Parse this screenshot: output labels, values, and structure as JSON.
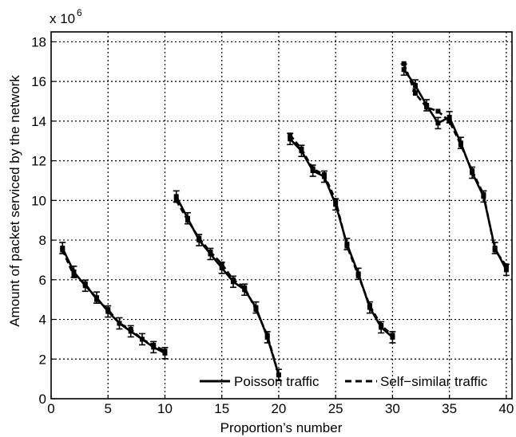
{
  "chart_data": {
    "type": "line",
    "title": "",
    "xlabel": "Proportion’s number",
    "ylabel": "Amount of packet serviced by the network",
    "y_multiplier_label": {
      "base": "x 10",
      "exponent": "6"
    },
    "xlim": [
      0,
      40.5
    ],
    "ylim": [
      0,
      18.5
    ],
    "xticks": [
      0,
      5,
      10,
      15,
      20,
      25,
      30,
      35,
      40
    ],
    "yticks": [
      0,
      2,
      4,
      6,
      8,
      10,
      12,
      14,
      16,
      18
    ],
    "grid": true,
    "grid_style": "dotted",
    "legend_position": "bottom-right",
    "series_color": "#000000",
    "series": [
      {
        "name": "Poisson traffic",
        "line_style": "solid",
        "segments": [
          {
            "x": [
              1,
              2,
              3,
              4,
              5,
              6,
              7,
              8,
              9,
              10
            ],
            "y": [
              7.6,
              6.4,
              5.7,
              5.1,
              4.4,
              3.8,
              3.4,
              3.0,
              2.6,
              2.3
            ]
          },
          {
            "x": [
              11,
              12,
              13,
              14,
              15,
              16,
              17,
              18,
              19,
              20
            ],
            "y": [
              10.2,
              9.1,
              8.0,
              7.3,
              6.6,
              5.9,
              5.5,
              4.6,
              3.1,
              1.2
            ]
          },
          {
            "x": [
              21,
              22,
              23,
              24,
              25,
              26,
              27,
              28,
              29,
              30
            ],
            "y": [
              13.1,
              12.5,
              11.5,
              11.2,
              9.8,
              7.8,
              6.3,
              4.6,
              3.6,
              3.1
            ]
          },
          {
            "x": [
              31,
              32,
              33,
              34,
              35,
              36,
              37,
              38,
              39,
              40
            ],
            "y": [
              16.6,
              15.8,
              14.8,
              13.9,
              14.2,
              12.9,
              11.4,
              10.2,
              7.6,
              6.5
            ]
          }
        ]
      },
      {
        "name": "Self−similar traffic",
        "line_style": "dashed",
        "segments": [
          {
            "x": [
              1,
              2,
              3,
              4,
              5,
              6,
              7,
              8,
              9,
              10
            ],
            "y": [
              7.5,
              6.2,
              5.8,
              5.0,
              4.5,
              3.8,
              3.5,
              3.0,
              2.7,
              2.4
            ]
          },
          {
            "x": [
              11,
              12,
              13,
              14,
              15,
              16,
              17,
              18,
              19,
              20
            ],
            "y": [
              10.0,
              9.0,
              8.1,
              7.4,
              6.8,
              6.0,
              5.6,
              4.5,
              3.2,
              1.2
            ]
          },
          {
            "x": [
              21,
              22,
              23,
              24,
              25,
              26,
              27,
              28,
              29,
              30
            ],
            "y": [
              13.3,
              12.6,
              11.6,
              11.3,
              10.0,
              7.7,
              6.2,
              4.7,
              3.7,
              3.2
            ]
          },
          {
            "x": [
              31,
              32,
              33,
              34,
              35,
              36,
              37,
              38,
              39,
              40
            ],
            "y": [
              16.9,
              15.4,
              14.7,
              14.5,
              14.0,
              12.8,
              11.5,
              10.3,
              7.5,
              6.7
            ]
          }
        ]
      }
    ]
  }
}
